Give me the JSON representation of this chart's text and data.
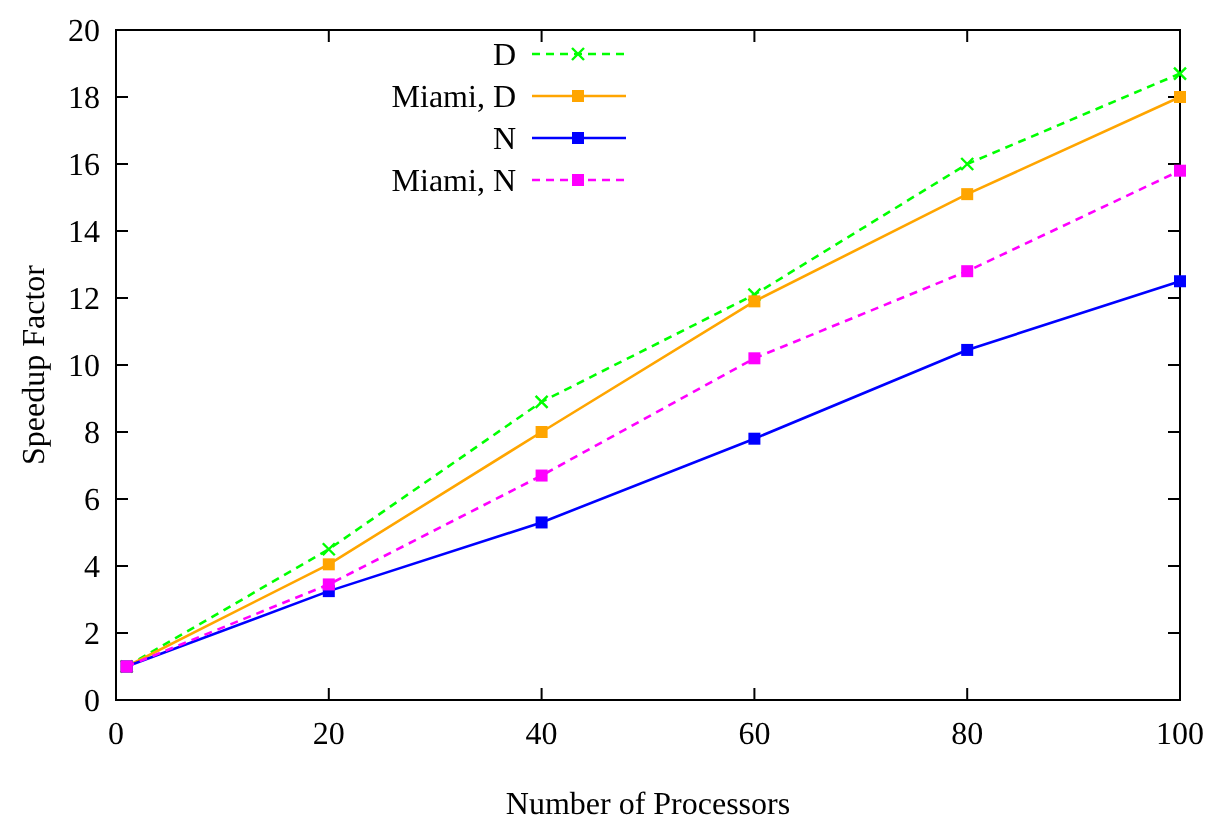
{
  "chart_data": {
    "type": "line",
    "xlabel": "Number of Processors",
    "ylabel": "Speedup Factor",
    "x": [
      1,
      20,
      40,
      60,
      80,
      100
    ],
    "xlim": [
      0,
      100
    ],
    "xticks": [
      0,
      20,
      40,
      60,
      80,
      100
    ],
    "ylim": [
      0,
      20
    ],
    "yticks": [
      0,
      2,
      4,
      6,
      8,
      10,
      12,
      14,
      16,
      18,
      20
    ],
    "legend": "top left",
    "grid": false,
    "series": [
      {
        "name": "D",
        "color": "#00ff00",
        "values": [
          1,
          4.5,
          8.9,
          12.1,
          16.0,
          18.7
        ],
        "marker": "cross",
        "line_style": "dashed"
      },
      {
        "name": "Miami, D",
        "color": "#ffa500",
        "values": [
          1,
          4.05,
          8.0,
          11.9,
          15.1,
          18.0
        ],
        "marker": "square",
        "line_style": "solid"
      },
      {
        "name": "N",
        "color": "#0000ff",
        "values": [
          1,
          3.25,
          5.3,
          7.8,
          10.45,
          12.5
        ],
        "marker": "square",
        "line_style": "solid"
      },
      {
        "name": "Miami, N",
        "color": "#ff00ff",
        "values": [
          1,
          3.45,
          6.7,
          10.2,
          12.8,
          15.8
        ],
        "marker": "square",
        "line_style": "dashed"
      }
    ]
  }
}
